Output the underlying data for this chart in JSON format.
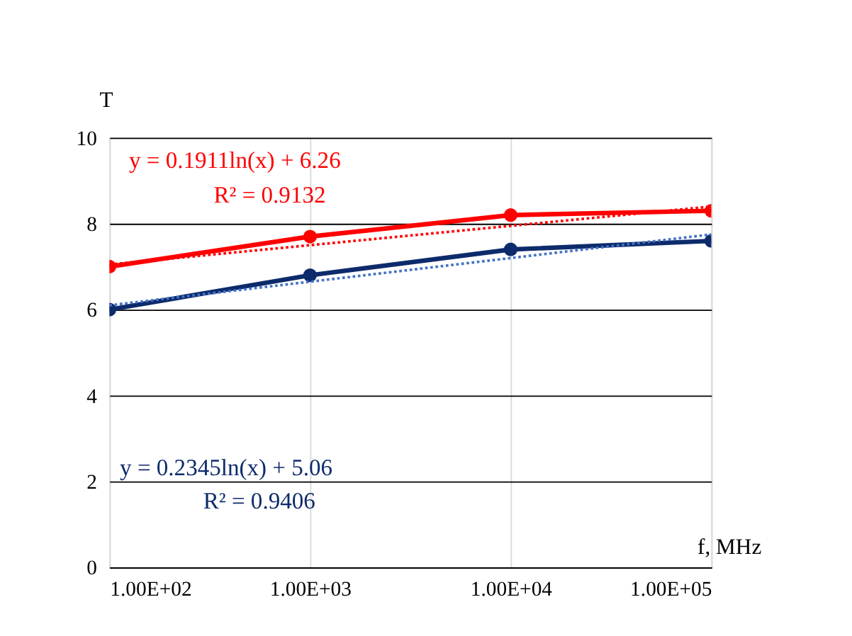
{
  "chart_data": {
    "type": "line",
    "xlabel": "f, MHz",
    "ylabel": "T",
    "x": [
      100,
      1000,
      10000,
      100000
    ],
    "series": [
      {
        "color": "#ff0000",
        "values": [
          7,
          7.7,
          8.2,
          8.3
        ],
        "marker": "circle",
        "line_style": "solid"
      },
      {
        "color": "#0d2b6b",
        "values": [
          6,
          6.8,
          7.4,
          7.6
        ],
        "marker": "circle",
        "line_style": "solid"
      },
      {
        "type": "line",
        "color": "#ff0000",
        "values": [
          7.05,
          7.5,
          7.95,
          8.4
        ],
        "marker": "none",
        "line_style": "dotted"
      },
      {
        "type": "line",
        "color": "#4472c4",
        "values": [
          6.1,
          6.65,
          7.2,
          7.75
        ],
        "marker": "none",
        "line_style": "dotted"
      }
    ],
    "annotations": [
      "y = 0.1911ln(x) + 6.26",
      "R² = 0.9132",
      "y = 0.2345ln(x) + 5.06",
      "R² = 0.9406"
    ],
    "log": "x",
    "xlim": [
      100,
      100000
    ],
    "xticks": [
      {
        "value": 100,
        "label": "1.00E+02"
      },
      {
        "value": 1000,
        "label": "1.00E+03"
      },
      {
        "value": 10000,
        "label": "1.00E+04"
      },
      {
        "value": 100000,
        "label": "1.00E+05"
      }
    ],
    "ylim": [
      0,
      10
    ],
    "yticks": [
      0,
      2,
      4,
      6,
      8,
      10
    ],
    "grid": true
  }
}
